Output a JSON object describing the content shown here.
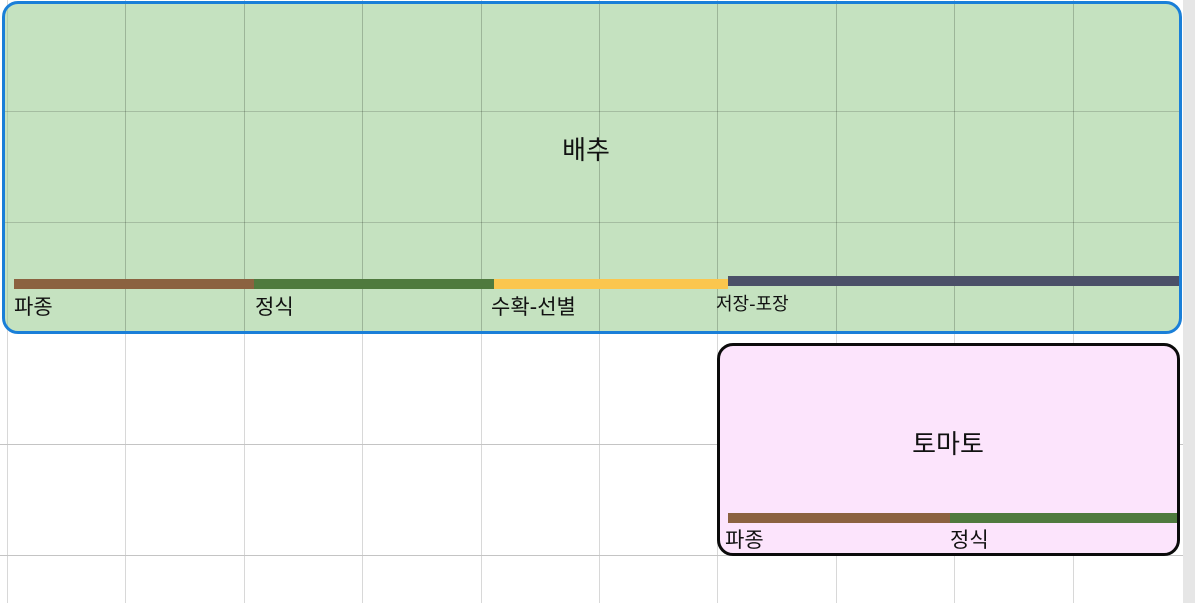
{
  "crops": [
    {
      "name": "배추",
      "phases": [
        {
          "label": "파종",
          "color": "#8b6240"
        },
        {
          "label": "정식",
          "color": "#4f7a3e"
        },
        {
          "label": "수확-선별",
          "color": "#fbc64e"
        },
        {
          "label": "저장-포장",
          "color": "#4b5068"
        }
      ]
    },
    {
      "name": "토마토",
      "phases": [
        {
          "label": "파종",
          "color": "#8b6240"
        },
        {
          "label": "정식",
          "color": "#4f7a3e"
        }
      ]
    }
  ],
  "colors": {
    "cabbage_fill": "#c5e3c0",
    "cabbage_border": "#1a7fd8",
    "tomato_fill": "#fce4fc",
    "tomato_border": "#0b0b0b",
    "grid_line": "#d8d8d8"
  }
}
